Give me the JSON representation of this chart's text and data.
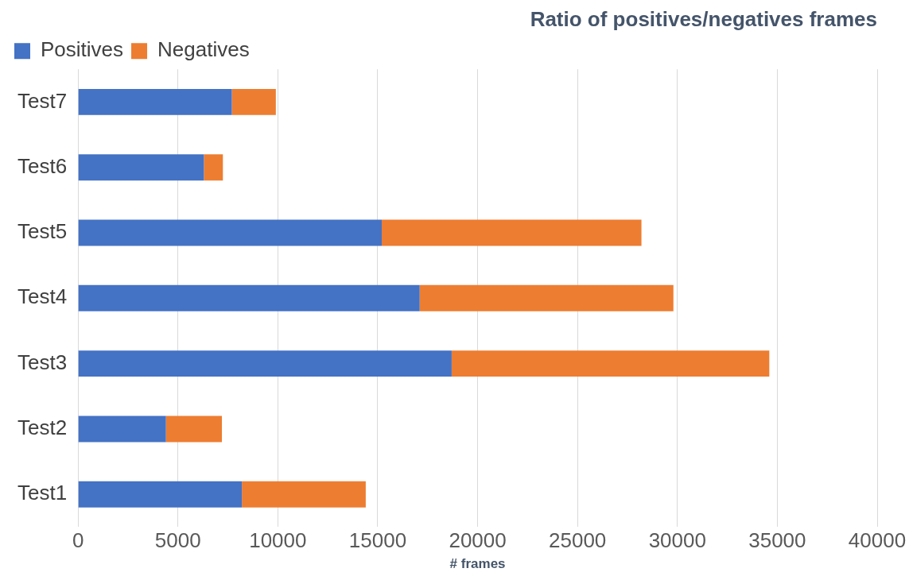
{
  "chart_data": {
    "type": "bar",
    "orientation": "horizontal",
    "stacked": true,
    "title": "Ratio of positives/negatives frames",
    "xlabel": "# frames",
    "categories": [
      "Test7",
      "Test6",
      "Test5",
      "Test4",
      "Test3",
      "Test2",
      "Test1"
    ],
    "series": [
      {
        "name": "Positives",
        "color": "#4472c4",
        "values": [
          7700,
          6300,
          15200,
          17100,
          18700,
          4400,
          8200
        ]
      },
      {
        "name": "Negatives",
        "color": "#ed7d31",
        "values": [
          2200,
          950,
          13000,
          12700,
          15900,
          2800,
          6200
        ]
      }
    ],
    "xlim": [
      0,
      40000
    ],
    "xticks": [
      0,
      5000,
      10000,
      15000,
      20000,
      25000,
      30000,
      35000,
      40000
    ],
    "grid": "x",
    "legend": "top left"
  }
}
